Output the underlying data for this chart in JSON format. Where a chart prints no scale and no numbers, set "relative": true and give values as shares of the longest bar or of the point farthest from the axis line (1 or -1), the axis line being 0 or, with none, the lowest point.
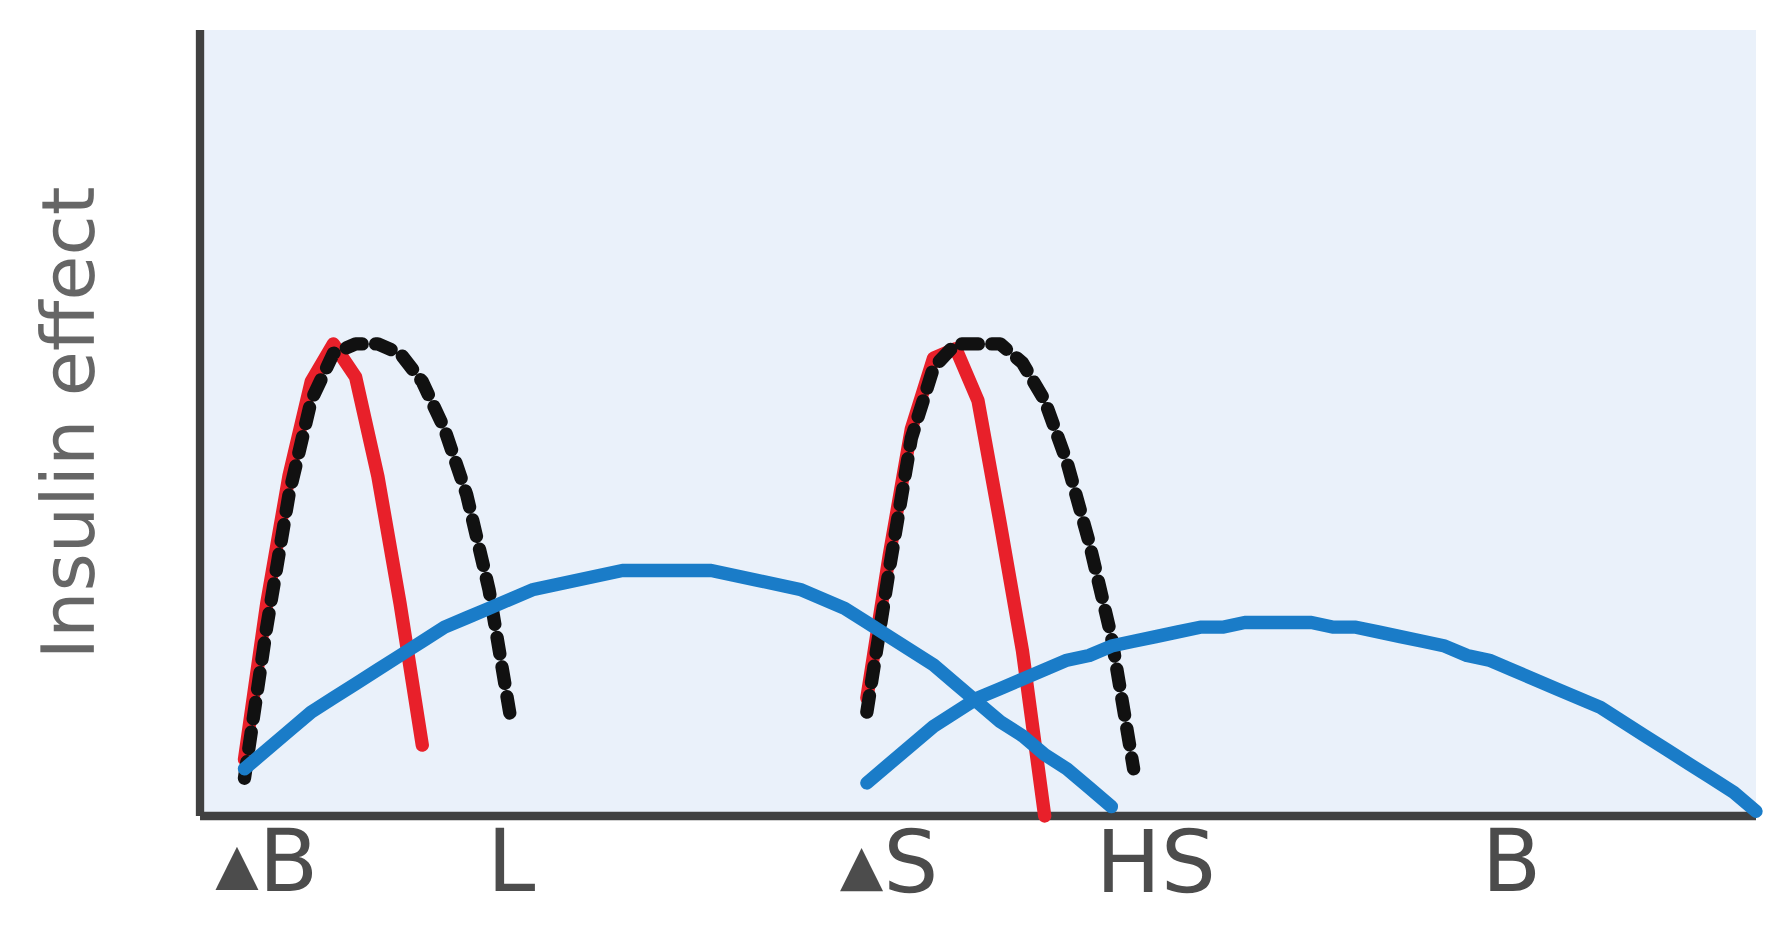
{
  "chart_data": {
    "type": "line",
    "ylabel": "Insulin effect",
    "relative": true,
    "tick_labels": "x",
    "grid": false,
    "marker": "none",
    "categories": [
      null,
      null,
      null,
      "▴B",
      null,
      null,
      null,
      null,
      null,
      null,
      null,
      null,
      null,
      null,
      "L",
      null,
      null,
      null,
      null,
      null,
      null,
      null,
      null,
      null,
      null,
      null,
      null,
      null,
      null,
      null,
      null,
      "▴S",
      null,
      null,
      null,
      null,
      null,
      null,
      null,
      null,
      null,
      null,
      null,
      "HS",
      null,
      null,
      null,
      null,
      null,
      null,
      null,
      null,
      null,
      null,
      null,
      null,
      null,
      null,
      null,
      "B",
      null,
      null,
      null,
      null,
      null,
      null,
      null,
      null,
      null,
      null,
      null
    ],
    "series": [
      {
        "color": "#e8202a",
        "line_style": "solid",
        "values": [
          null,
          null,
          0.12,
          0.45,
          0.72,
          0.92,
          1.0,
          0.93,
          0.72,
          0.45,
          0.15,
          null,
          null,
          null,
          null,
          null,
          null,
          null,
          null,
          null,
          null,
          null,
          null,
          null,
          null,
          null,
          null,
          null,
          null,
          null,
          0.25,
          0.55,
          0.82,
          0.97,
          0.99,
          0.88,
          0.62,
          0.35,
          0.0,
          null,
          null,
          null,
          null,
          null,
          null,
          null,
          null,
          null,
          null,
          null,
          null,
          null,
          null,
          null,
          null,
          null,
          null,
          null,
          null,
          null,
          null,
          null,
          null,
          null,
          null,
          null,
          null,
          null,
          null,
          null,
          null
        ]
      },
      {
        "color": "#111111",
        "line_style": "dashed",
        "values": [
          null,
          null,
          0.08,
          0.4,
          0.68,
          0.88,
          0.98,
          1.0,
          1.0,
          0.98,
          0.92,
          0.82,
          0.68,
          0.48,
          0.2,
          null,
          null,
          null,
          null,
          null,
          null,
          null,
          null,
          null,
          null,
          null,
          null,
          null,
          null,
          null,
          0.22,
          0.52,
          0.8,
          0.95,
          1.0,
          1.0,
          1.0,
          0.96,
          0.88,
          0.75,
          0.58,
          0.38,
          0.1,
          null,
          null,
          null,
          null,
          null,
          null,
          null,
          null,
          null,
          null,
          null,
          null,
          null,
          null,
          null,
          null,
          null,
          null,
          null,
          null,
          null,
          null,
          null,
          null,
          null,
          null,
          null,
          null
        ]
      },
      {
        "color": "#1a7cc8",
        "line_style": "solid",
        "values": [
          null,
          null,
          0.1,
          0.14,
          0.18,
          0.22,
          0.25,
          0.28,
          0.31,
          0.34,
          0.37,
          0.4,
          0.42,
          0.44,
          0.46,
          0.48,
          0.49,
          0.5,
          0.51,
          0.52,
          0.52,
          0.52,
          0.52,
          0.52,
          0.51,
          0.5,
          0.49,
          0.48,
          0.46,
          0.44,
          0.41,
          0.38,
          0.35,
          0.32,
          0.28,
          0.24,
          0.2,
          0.17,
          0.13,
          0.1,
          0.06,
          0.02,
          null,
          null,
          null,
          null,
          null,
          null,
          null,
          null,
          null,
          null,
          null,
          null,
          null,
          null,
          null,
          null,
          null,
          null,
          null,
          null,
          null,
          null,
          null,
          null,
          null,
          null,
          null,
          null,
          null
        ]
      },
      {
        "color": "#1a7cc8",
        "line_style": "solid",
        "values": [
          null,
          null,
          null,
          null,
          null,
          null,
          null,
          null,
          null,
          null,
          null,
          null,
          null,
          null,
          null,
          null,
          null,
          null,
          null,
          null,
          null,
          null,
          null,
          null,
          null,
          null,
          null,
          null,
          null,
          null,
          0.07,
          0.11,
          0.15,
          0.19,
          0.22,
          0.25,
          0.27,
          0.29,
          0.31,
          0.33,
          0.34,
          0.36,
          0.37,
          0.38,
          0.39,
          0.4,
          0.4,
          0.41,
          0.41,
          0.41,
          0.41,
          0.4,
          0.4,
          0.39,
          0.38,
          0.37,
          0.36,
          0.34,
          0.33,
          0.31,
          0.29,
          0.27,
          0.25,
          0.23,
          0.2,
          0.17,
          0.14,
          0.11,
          0.08,
          0.05,
          0.01
        ]
      }
    ]
  }
}
